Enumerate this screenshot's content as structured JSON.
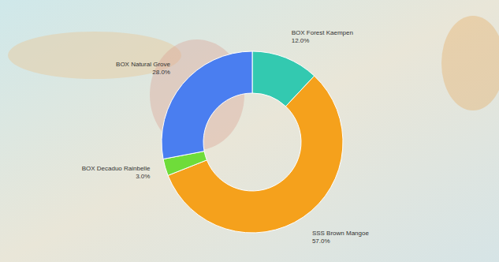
{
  "chart_data": {
    "type": "donut",
    "categories": [
      "BOX Forest Kaempen",
      "SSS Brown Mangoe",
      "BOX Decaduo Rainbelle",
      "BOX Natural Grove"
    ],
    "values": [
      12,
      57,
      3,
      28
    ],
    "value_labels": [
      "12.0%",
      "57.0%",
      "3.0%",
      "28.0%"
    ],
    "colors": [
      "#33c9b0",
      "#f5a11c",
      "#6fdc3a",
      "#4a7ef0"
    ],
    "data_labels": true
  }
}
